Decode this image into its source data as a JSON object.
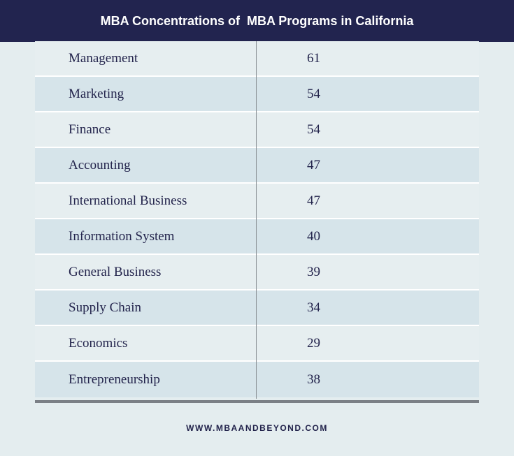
{
  "title": "MBA Concentrations of  MBA Programs in California",
  "table": {
    "rows": [
      [
        "Management",
        61
      ],
      [
        "Marketing",
        54
      ],
      [
        "Finance",
        54
      ],
      [
        "Accounting",
        47
      ],
      [
        "International Business",
        47
      ],
      [
        "Information System",
        40
      ],
      [
        "General Business",
        39
      ],
      [
        "Supply Chain",
        34
      ],
      [
        "Economics",
        29
      ],
      [
        "Entrepreneurship",
        38
      ]
    ]
  },
  "footer": "WWW.MBAANDBEYOND.COM"
}
